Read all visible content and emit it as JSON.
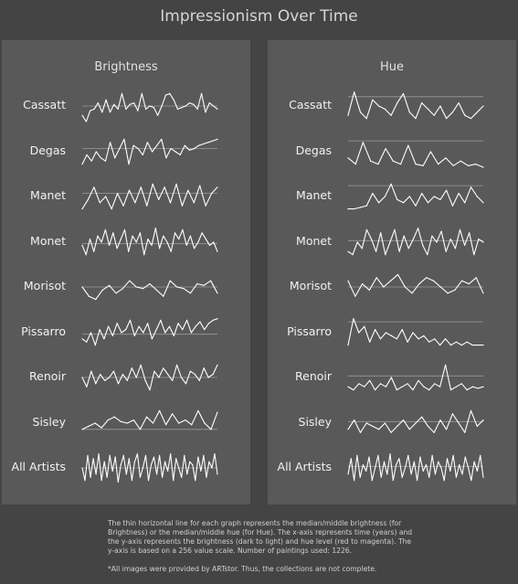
{
  "title": "Impressionism Over Time",
  "footer_note": "The thin horizontal line for each graph represents the median/middle brightness (for Brightness) or the median/middle hue (for Hue). The x-axis represents time (years) and the y-axis represents the brightness (dark to light) and hue level (red to magenta). The y-axis is based on a 256 value scale. Number of paintings used: 1226.",
  "footer_credit": "*All images were provided by ARTstor. Thus, the collections are not complete.",
  "colors": {
    "background": "#444444",
    "panel": "#595959",
    "line": "#ffffff",
    "median_line": "#9a9a9a"
  },
  "chart_data": [
    {
      "type": "line",
      "title": "Brightness",
      "ylim": [
        0,
        256
      ],
      "artists": [
        {
          "name": "Cassatt",
          "median": 0.5,
          "values": [
            0.2,
            0.0,
            0.35,
            0.4,
            0.6,
            0.3,
            0.7,
            0.3,
            0.55,
            0.4,
            0.9,
            0.4,
            0.55,
            0.6,
            0.35,
            0.9,
            0.4,
            0.5,
            0.45,
            0.2,
            0.5,
            0.85,
            0.9,
            0.7,
            0.4,
            0.45,
            0.5,
            0.6,
            0.55,
            0.4,
            0.9,
            0.3,
            0.6,
            0.5,
            0.4
          ]
        },
        {
          "name": "Degas",
          "median": 0.6,
          "values": [
            0.1,
            0.4,
            0.2,
            0.5,
            0.3,
            0.2,
            0.8,
            0.3,
            0.6,
            0.9,
            0.1,
            0.7,
            0.6,
            0.4,
            0.8,
            0.5,
            0.7,
            0.9,
            0.3,
            0.6,
            0.5,
            0.4,
            0.7,
            0.55,
            0.6,
            0.7,
            0.75,
            0.8,
            0.85,
            0.9
          ]
        },
        {
          "name": "Manet",
          "median": 0.6,
          "values": [
            0.1,
            0.4,
            0.8,
            0.3,
            0.5,
            0.1,
            0.6,
            0.2,
            0.7,
            0.3,
            0.8,
            0.2,
            0.9,
            0.4,
            0.8,
            0.3,
            0.9,
            0.2,
            0.7,
            0.3,
            0.85,
            0.2,
            0.6,
            0.8
          ]
        },
        {
          "name": "Monet",
          "median": 0.45,
          "values": [
            0.4,
            0.1,
            0.6,
            0.2,
            0.7,
            0.5,
            0.9,
            0.4,
            0.8,
            0.3,
            0.6,
            0.9,
            0.2,
            0.7,
            0.5,
            0.8,
            0.1,
            0.6,
            0.4,
            0.95,
            0.3,
            0.7,
            0.5,
            0.2,
            0.8,
            0.6,
            0.9,
            0.4,
            0.7,
            0.3,
            0.5,
            0.8,
            0.6,
            0.4,
            0.5,
            0.2
          ]
        },
        {
          "name": "Morisot",
          "median": 0.5,
          "values": [
            0.5,
            0.2,
            0.1,
            0.4,
            0.55,
            0.3,
            0.45,
            0.7,
            0.5,
            0.45,
            0.6,
            0.4,
            0.2,
            0.7,
            0.5,
            0.45,
            0.3,
            0.6,
            0.55,
            0.7,
            0.3
          ]
        },
        {
          "name": "Pissarro",
          "median": 0.45,
          "values": [
            0.3,
            0.2,
            0.5,
            0.1,
            0.6,
            0.3,
            0.7,
            0.4,
            0.8,
            0.5,
            0.6,
            0.9,
            0.4,
            0.7,
            0.5,
            0.8,
            0.3,
            0.6,
            0.9,
            0.5,
            0.7,
            0.4,
            0.8,
            0.6,
            0.9,
            0.5,
            0.7,
            0.85,
            0.6,
            0.8,
            0.9,
            0.95
          ]
        },
        {
          "name": "Renoir",
          "median": 0.5,
          "values": [
            0.5,
            0.2,
            0.7,
            0.3,
            0.6,
            0.4,
            0.5,
            0.7,
            0.3,
            0.6,
            0.4,
            0.8,
            0.5,
            0.9,
            0.4,
            0.1,
            0.7,
            0.5,
            0.8,
            0.6,
            0.4,
            0.9,
            0.5,
            0.3,
            0.7,
            0.6,
            0.4,
            0.8,
            0.5,
            0.6,
            0.9
          ]
        },
        {
          "name": "Sisley",
          "median": 0.3,
          "values": [
            0.3,
            0.4,
            0.5,
            0.35,
            0.6,
            0.7,
            0.55,
            0.5,
            0.6,
            0.3,
            0.7,
            0.5,
            0.9,
            0.45,
            0.8,
            0.5,
            0.6,
            0.45,
            0.9,
            0.5,
            0.3,
            0.85
          ]
        },
        {
          "name": "All Artists",
          "median": 0.5,
          "values": [
            0.5,
            0.1,
            0.9,
            0.2,
            0.8,
            0.3,
            0.95,
            0.1,
            0.7,
            0.2,
            0.9,
            0.4,
            0.85,
            0.05,
            0.6,
            0.9,
            0.3,
            0.8,
            0.1,
            0.7,
            0.95,
            0.2,
            0.5,
            0.9,
            0.1,
            0.6,
            0.85,
            0.3,
            0.9,
            0.2,
            0.7,
            0.4,
            0.95,
            0.1,
            0.8,
            0.5,
            0.2,
            0.9,
            0.3,
            0.7,
            0.6,
            0.1,
            0.85,
            0.4,
            0.9,
            0.2,
            0.7,
            0.5,
            0.95,
            0.3
          ]
        }
      ]
    },
    {
      "type": "line",
      "title": "Hue",
      "ylim": [
        0,
        256
      ],
      "artists": [
        {
          "name": "Cassatt",
          "median": 0.8,
          "values": [
            0.2,
            0.95,
            0.3,
            0.1,
            0.7,
            0.5,
            0.4,
            0.2,
            0.6,
            0.9,
            0.3,
            0.1,
            0.6,
            0.4,
            0.2,
            0.5,
            0.1,
            0.3,
            0.6,
            0.2,
            0.1,
            0.3,
            0.5
          ]
        },
        {
          "name": "Degas",
          "median": 0.85,
          "values": [
            0.3,
            0.1,
            0.8,
            0.2,
            0.1,
            0.6,
            0.2,
            0.1,
            0.7,
            0.1,
            0.05,
            0.5,
            0.1,
            0.3,
            0.05,
            0.2,
            0.05,
            0.1,
            0.0
          ]
        },
        {
          "name": "Manet",
          "median": 0.85,
          "values": [
            0.1,
            0.1,
            0.15,
            0.2,
            0.6,
            0.3,
            0.5,
            0.9,
            0.4,
            0.3,
            0.5,
            0.2,
            0.6,
            0.3,
            0.5,
            0.4,
            0.7,
            0.2,
            0.6,
            0.3,
            0.8,
            0.5,
            0.3
          ]
        },
        {
          "name": "Monet",
          "median": 0.55,
          "values": [
            0.2,
            0.1,
            0.5,
            0.3,
            0.9,
            0.6,
            0.2,
            0.8,
            0.1,
            0.5,
            0.9,
            0.2,
            0.7,
            0.3,
            0.6,
            0.95,
            0.4,
            0.1,
            0.7,
            0.5,
            0.85,
            0.2,
            0.6,
            0.3,
            0.9,
            0.4,
            0.8,
            0.1,
            0.6,
            0.5
          ]
        },
        {
          "name": "Morisot",
          "median": 0.5,
          "values": [
            0.7,
            0.2,
            0.6,
            0.4,
            0.8,
            0.5,
            0.7,
            0.9,
            0.5,
            0.3,
            0.6,
            0.8,
            0.7,
            0.5,
            0.3,
            0.4,
            0.7,
            0.6,
            0.8,
            0.3
          ]
        },
        {
          "name": "Pissarro",
          "median": 0.85,
          "values": [
            0.1,
            0.95,
            0.5,
            0.7,
            0.2,
            0.6,
            0.3,
            0.5,
            0.4,
            0.3,
            0.6,
            0.2,
            0.5,
            0.3,
            0.4,
            0.2,
            0.3,
            0.1,
            0.3,
            0.1,
            0.2,
            0.1,
            0.2,
            0.1,
            0.1,
            0.1
          ]
        },
        {
          "name": "Renoir",
          "median": 0.55,
          "values": [
            0.2,
            0.1,
            0.3,
            0.2,
            0.4,
            0.1,
            0.3,
            0.2,
            0.5,
            0.1,
            0.2,
            0.3,
            0.1,
            0.4,
            0.2,
            0.1,
            0.3,
            0.2,
            0.9,
            0.1,
            0.2,
            0.3,
            0.1,
            0.2,
            0.15,
            0.2
          ]
        },
        {
          "name": "Sisley",
          "median": 0.55,
          "values": [
            0.3,
            0.6,
            0.2,
            0.5,
            0.4,
            0.3,
            0.5,
            0.2,
            0.4,
            0.6,
            0.3,
            0.5,
            0.7,
            0.4,
            0.2,
            0.6,
            0.3,
            0.8,
            0.5,
            0.2,
            0.9,
            0.4,
            0.6
          ]
        },
        {
          "name": "All Artists",
          "median": 0.55,
          "values": [
            0.3,
            0.8,
            0.1,
            0.9,
            0.2,
            0.6,
            0.4,
            0.85,
            0.1,
            0.5,
            0.9,
            0.2,
            0.7,
            0.3,
            0.95,
            0.1,
            0.6,
            0.8,
            0.2,
            0.5,
            0.9,
            0.3,
            0.7,
            0.1,
            0.85,
            0.4,
            0.6,
            0.2,
            0.9,
            0.3,
            0.7,
            0.5,
            0.1,
            0.8,
            0.4,
            0.9,
            0.2,
            0.6,
            0.3,
            0.85,
            0.5,
            0.1,
            0.7,
            0.4,
            0.9,
            0.2
          ]
        }
      ]
    }
  ]
}
